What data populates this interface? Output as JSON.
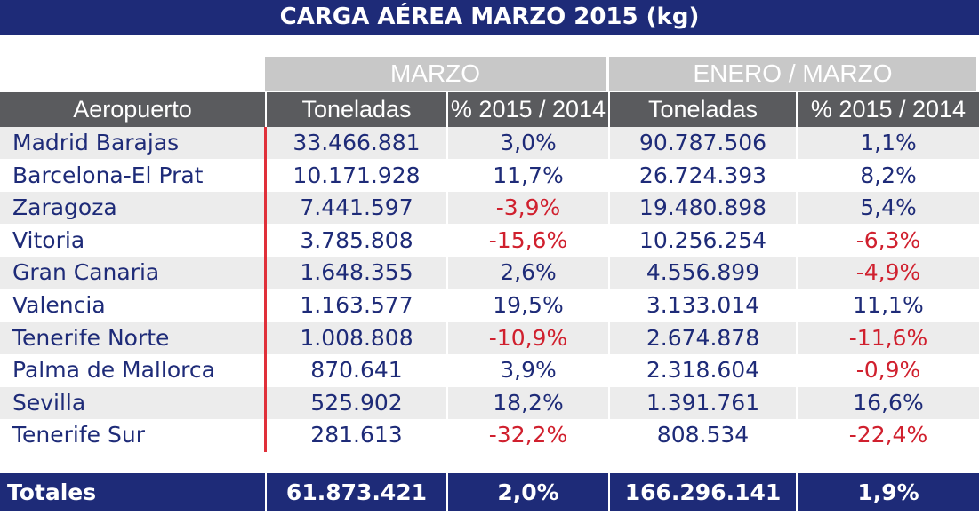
{
  "title": "CARGA AÉREA MARZO 2015 (kg)",
  "groups": {
    "marzo": "MARZO",
    "acumulado": "ENERO / MARZO"
  },
  "columns": {
    "airport": "Aeropuerto",
    "tons_month": "Toneladas",
    "pct_month": "% 2015 / 2014",
    "tons_ytd": "Toneladas",
    "pct_ytd": "% 2015 / 2014"
  },
  "rows": [
    {
      "name": "Madrid Barajas",
      "tons_month": "33.466.881",
      "pct_month": "3,0%",
      "tons_ytd": "90.787.506",
      "pct_ytd": "1,1%"
    },
    {
      "name": "Barcelona-El Prat",
      "tons_month": "10.171.928",
      "pct_month": "11,7%",
      "tons_ytd": "26.724.393",
      "pct_ytd": "8,2%"
    },
    {
      "name": "Zaragoza",
      "tons_month": "7.441.597",
      "pct_month": "-3,9%",
      "tons_ytd": "19.480.898",
      "pct_ytd": "5,4%"
    },
    {
      "name": "Vitoria",
      "tons_month": "3.785.808",
      "pct_month": "-15,6%",
      "tons_ytd": "10.256.254",
      "pct_ytd": "-6,3%"
    },
    {
      "name": "Gran Canaria",
      "tons_month": "1.648.355",
      "pct_month": "2,6%",
      "tons_ytd": "4.556.899",
      "pct_ytd": "-4,9%"
    },
    {
      "name": "Valencia",
      "tons_month": "1.163.577",
      "pct_month": "19,5%",
      "tons_ytd": "3.133.014",
      "pct_ytd": "11,1%"
    },
    {
      "name": "Tenerife Norte",
      "tons_month": "1.008.808",
      "pct_month": "-10,9%",
      "tons_ytd": "2.674.878",
      "pct_ytd": "-11,6%"
    },
    {
      "name": "Palma de Mallorca",
      "tons_month": "870.641",
      "pct_month": "3,9%",
      "tons_ytd": "2.318.604",
      "pct_ytd": "-0,9%"
    },
    {
      "name": "Sevilla",
      "tons_month": "525.902",
      "pct_month": "18,2%",
      "tons_ytd": "1.391.761",
      "pct_ytd": "16,6%"
    },
    {
      "name": "Tenerife Sur",
      "tons_month": "281.613",
      "pct_month": "-32,2%",
      "tons_ytd": "808.534",
      "pct_ytd": "-22,4%"
    }
  ],
  "totals": {
    "label": "Totales",
    "tons_month": "61.873.421",
    "pct_month": "2,0%",
    "tons_ytd": "166.296.141",
    "pct_ytd": "1,9%"
  },
  "colors": {
    "header_navy": "#1e2b78",
    "group_gray": "#c8c8c8",
    "column_header_gray": "#5a5b5e",
    "negative_red": "#d0202e",
    "row_shade": "#ececec"
  }
}
